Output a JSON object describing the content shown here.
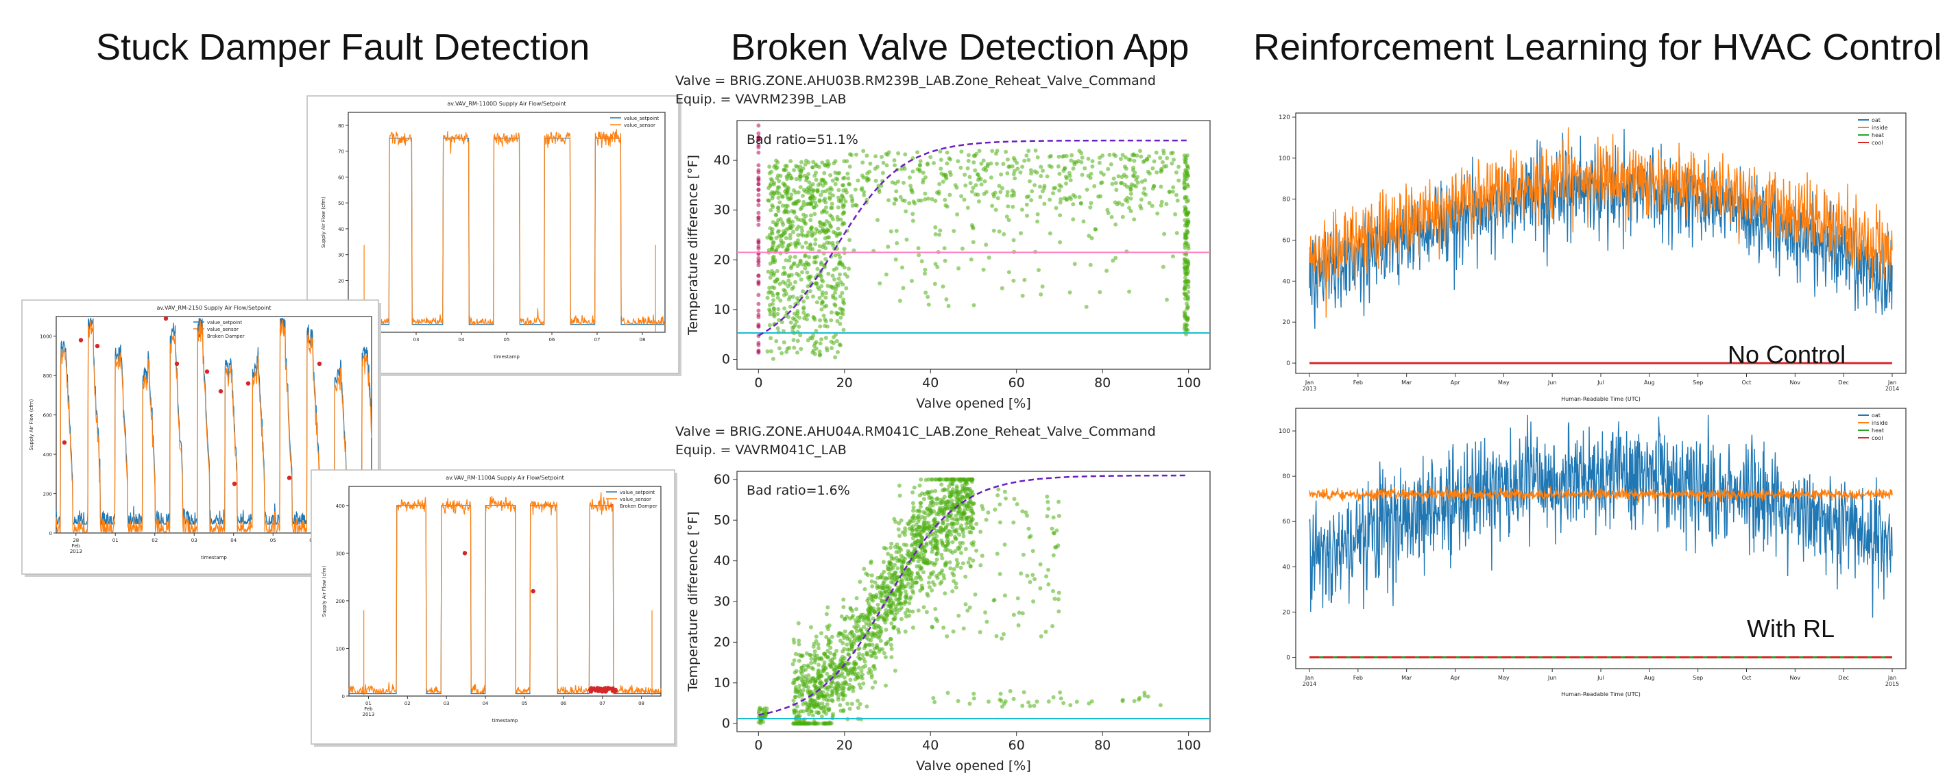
{
  "panels": [
    {
      "title": "Stuck Damper Fault Detection"
    },
    {
      "title": "Broken Valve Detection App"
    },
    {
      "title": "Reinforcement Learning for HVAC Control"
    }
  ],
  "colors": {
    "setpoint": "#1f77b4",
    "sensor": "#ff7f0e",
    "broken": "#d62728",
    "scatter": "#4caf10",
    "sigmoid": "#6a1fc2",
    "hline_pink": "#ff7fc0",
    "hline_teal": "#17becf",
    "heat": "#2ca02c",
    "cool": "#d62728"
  },
  "chart_data": [
    {
      "type": "line",
      "title": "av.VAV_RM-1100D Supply Air Flow/Setpoint",
      "xlabel": "timestamp",
      "ylabel": "Supply Air Flow (cfm)",
      "ylim": [
        0,
        85
      ],
      "yticks": [
        "0",
        "10",
        "20",
        "30",
        "40",
        "50",
        "60",
        "70",
        "80"
      ],
      "xticks": [
        "02",
        "03",
        "04",
        "05",
        "06",
        "07",
        "08"
      ],
      "legend": [
        "value_setpoint",
        "value_sensor"
      ],
      "legend_position": "top-right",
      "series": [
        {
          "name": "value_setpoint",
          "low": 3,
          "high": 75
        },
        {
          "name": "value_sensor",
          "low": 3,
          "high": 76
        }
      ],
      "on_intervals": [
        [
          1.3,
          2.0
        ],
        [
          3.0,
          3.8
        ],
        [
          4.6,
          5.4
        ],
        [
          6.2,
          7.0
        ],
        [
          7.8,
          8.6
        ]
      ],
      "x_range": [
        0,
        10
      ]
    },
    {
      "type": "line",
      "title": "av.VAV_RM-2150 Supply Air Flow/Setpoint",
      "xlabel": "timestamp",
      "ylabel": "Supply Air Flow (cfm)",
      "ylim": [
        0,
        1100
      ],
      "yticks": [
        "0",
        "200",
        "400",
        "600",
        "800",
        "1000"
      ],
      "xticks": [
        "28\nFeb\n2013",
        "01",
        "02",
        "03",
        "04",
        "05",
        "06",
        "07"
      ],
      "legend": [
        "value_setpoint",
        "value_sensor",
        "Broken Damper"
      ],
      "legend_position": "top-center",
      "series": [
        {
          "name": "value_setpoint"
        },
        {
          "name": "value_sensor"
        },
        {
          "name": "Broken Damper",
          "points": [
            [
              0.3,
              460
            ],
            [
              0.9,
              980
            ],
            [
              1.5,
              950
            ],
            [
              4.0,
              1090
            ],
            [
              4.4,
              860
            ],
            [
              5.5,
              820
            ],
            [
              6.0,
              720
            ],
            [
              6.5,
              250
            ],
            [
              7.0,
              760
            ],
            [
              8.5,
              280
            ],
            [
              9.6,
              860
            ],
            [
              10.7,
              300
            ]
          ]
        }
      ],
      "x_range": [
        0,
        11.5
      ]
    },
    {
      "type": "line",
      "title": "av.VAV_RM-1100A Supply Air Flow/Setpoint",
      "xlabel": "timestamp",
      "ylabel": "Supply Air Flow (cfm)",
      "ylim": [
        0,
        440
      ],
      "yticks": [
        "0",
        "100",
        "200",
        "300",
        "400"
      ],
      "xticks": [
        "01\nFeb\n2013",
        "02",
        "03",
        "04",
        "05",
        "06",
        "07",
        "08"
      ],
      "legend": [
        "value_setpoint",
        "value_sensor",
        "Broken Damper"
      ],
      "legend_position": "top-right",
      "series": [
        {
          "name": "value_setpoint",
          "low": 5,
          "high": 400
        },
        {
          "name": "value_sensor",
          "low": 5,
          "high": 400
        },
        {
          "name": "Broken Damper",
          "points": [
            [
              3.9,
              300
            ],
            [
              6.2,
              220
            ]
          ]
        }
      ],
      "on_intervals": [
        [
          1.6,
          2.6
        ],
        [
          3.1,
          4.1
        ],
        [
          4.6,
          5.6
        ],
        [
          6.1,
          7.0
        ],
        [
          8.1,
          8.9
        ]
      ],
      "x_range": [
        0,
        10.5
      ]
    },
    {
      "type": "scatter",
      "title": "Valve = BRIG.ZONE.AHU03B.RM239B_LAB.Zone_Reheat_Valve_Command",
      "subtitle": "Equip. = VAVRM239B_LAB",
      "annotation": "Bad ratio=51.1%",
      "xlabel": "Valve opened [%]",
      "ylabel": "Temperature difference [°F]",
      "xlim": [
        -5,
        105
      ],
      "ylim": [
        -2,
        48
      ],
      "xticks": [
        "0",
        "20",
        "40",
        "60",
        "80",
        "100"
      ],
      "yticks": [
        "0",
        "10",
        "20",
        "30",
        "40"
      ],
      "hlines": [
        {
          "y": 21.5,
          "color": "pink"
        },
        {
          "y": 5.3,
          "color": "teal"
        }
      ],
      "sigmoid": {
        "ymin": 1,
        "ymax": 44,
        "x0": 18,
        "k": 0.13
      },
      "clusters": [
        {
          "x": [
            0,
            0
          ],
          "y": [
            0,
            47
          ],
          "n": 60,
          "color": "magenta"
        },
        {
          "x": [
            2,
            20
          ],
          "y": [
            0,
            40
          ],
          "n": 700
        },
        {
          "x": [
            20,
            98
          ],
          "y": [
            30,
            42
          ],
          "n": 420
        },
        {
          "x": [
            20,
            98
          ],
          "y": [
            10,
            30
          ],
          "n": 110
        },
        {
          "x": [
            99,
            100
          ],
          "y": [
            5,
            42
          ],
          "n": 150
        }
      ]
    },
    {
      "type": "scatter",
      "title": "Valve = BRIG.ZONE.AHU04A.RM041C_LAB.Zone_Reheat_Valve_Command",
      "subtitle": "Equip. = VAVRM041C_LAB",
      "annotation": "Bad ratio=1.6%",
      "xlabel": "Valve opened [%]",
      "ylabel": "Temperature difference [°F]",
      "xlim": [
        -5,
        105
      ],
      "ylim": [
        -2,
        62
      ],
      "xticks": [
        "0",
        "20",
        "40",
        "60",
        "80",
        "100"
      ],
      "yticks": [
        "0",
        "10",
        "20",
        "30",
        "40",
        "50",
        "60"
      ],
      "hlines": [
        {
          "y": 1.2,
          "color": "teal"
        }
      ],
      "sigmoid": {
        "ymin": 0.5,
        "ymax": 61,
        "x0": 30,
        "k": 0.12
      },
      "clusters": [
        {
          "x": [
            8,
            50
          ],
          "y": [
            0,
            60
          ],
          "n": 1500,
          "mode": "band"
        },
        {
          "x": [
            35,
            70
          ],
          "y": [
            20,
            58
          ],
          "n": 150
        },
        {
          "x": [
            40,
            100
          ],
          "y": [
            4,
            8
          ],
          "n": 40
        },
        {
          "x": [
            0,
            2
          ],
          "y": [
            0,
            4
          ],
          "n": 30
        }
      ]
    },
    {
      "type": "line",
      "title": "",
      "xlabel": "Human-Readable Time (UTC)",
      "ylabel": "",
      "ylim": [
        -5,
        122
      ],
      "yticks": [
        "0",
        "20",
        "40",
        "60",
        "80",
        "100",
        "120"
      ],
      "xticks": [
        "Jan\n2013",
        "Feb",
        "Mar",
        "Apr",
        "May",
        "Jun",
        "Jul",
        "Aug",
        "Sep",
        "Oct",
        "Nov",
        "Dec",
        "Jan\n2014"
      ],
      "legend": [
        "oat",
        "inside",
        "heat",
        "cool"
      ],
      "legend_position": "top-right",
      "annotation": "No Control",
      "series": [
        {
          "name": "oat",
          "profile": "seasonal",
          "mean": [
            40,
            85,
            40
          ],
          "noise": 12
        },
        {
          "name": "inside",
          "profile": "seasonal",
          "mean": [
            50,
            90,
            55
          ],
          "noise": 10
        },
        {
          "name": "heat",
          "value": 0
        },
        {
          "name": "cool",
          "value": 0
        }
      ]
    },
    {
      "type": "line",
      "title": "",
      "xlabel": "Human-Readable Time (UTC)",
      "ylabel": "",
      "ylim": [
        -5,
        110
      ],
      "yticks": [
        "0",
        "20",
        "40",
        "60",
        "80",
        "100"
      ],
      "xticks": [
        "Jan\n2014",
        "Feb",
        "Mar",
        "Apr",
        "May",
        "Jun",
        "Jul",
        "Aug",
        "Sep",
        "Oct",
        "Nov",
        "Dec",
        "Jan\n2015"
      ],
      "legend": [
        "oat",
        "inside",
        "heat",
        "cool"
      ],
      "legend_position": "top-right",
      "annotation": "With RL",
      "series": [
        {
          "name": "oat",
          "profile": "seasonal",
          "mean": [
            45,
            80,
            50
          ],
          "noise": 14
        },
        {
          "name": "inside",
          "value": 72
        },
        {
          "name": "heat",
          "value": 0
        },
        {
          "name": "cool",
          "value": 0
        }
      ]
    }
  ]
}
